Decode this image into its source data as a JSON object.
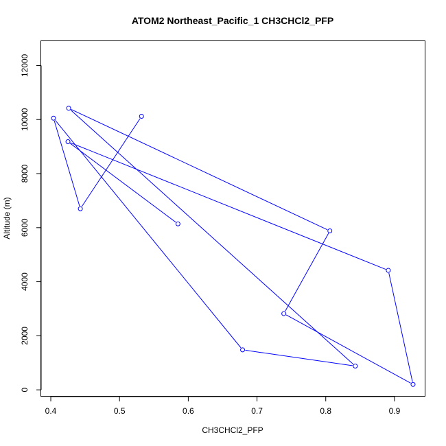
{
  "chart_data": {
    "type": "line",
    "title": "ATOM2 Northeast_Pacific_1 CH3CHCl2_PFP",
    "xlabel": "CH3CHCl2_PFP",
    "ylabel": "Altitude (m)",
    "xlim": [
      0.386,
      0.945
    ],
    "ylim": [
      -250,
      12900
    ],
    "x_ticks": [
      0.4,
      0.5,
      0.6,
      0.7,
      0.8,
      0.9
    ],
    "y_ticks": [
      0,
      2000,
      4000,
      6000,
      8000,
      10000,
      12000
    ],
    "x_tick_labels": [
      "0.4",
      "0.5",
      "0.6",
      "0.7",
      "0.8",
      "0.9"
    ],
    "y_tick_labels": [
      "0",
      "2000",
      "4000",
      "6000",
      "8000",
      "10000",
      "12000"
    ],
    "line_color": "#0000ff",
    "markers": "open-circle",
    "grid": false,
    "series": [
      {
        "points": [
          {
            "x": 0.532,
            "y": 10120
          },
          {
            "x": 0.443,
            "y": 6700
          },
          {
            "x": 0.404,
            "y": 10050
          },
          {
            "x": 0.679,
            "y": 1480
          },
          {
            "x": 0.843,
            "y": 880
          },
          {
            "x": 0.426,
            "y": 10420
          },
          {
            "x": 0.806,
            "y": 5880
          },
          {
            "x": 0.739,
            "y": 2820
          },
          {
            "x": 0.927,
            "y": 200
          },
          {
            "x": 0.891,
            "y": 4420
          },
          {
            "x": 0.425,
            "y": 9180
          },
          {
            "x": 0.585,
            "y": 6140
          }
        ]
      }
    ]
  }
}
